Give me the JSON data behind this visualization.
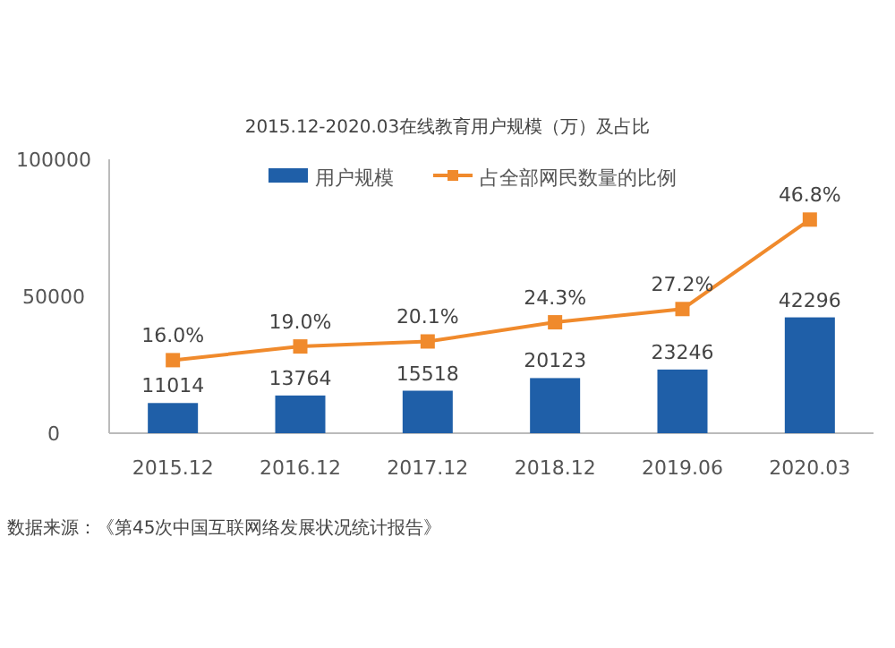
{
  "chart_data": {
    "type": "bar",
    "title": "2015.12-2020.03在线教育用户规模（万）及占比",
    "categories": [
      "2015.12",
      "2016.12",
      "2017.12",
      "2018.12",
      "2019.06",
      "2020.03"
    ],
    "series": [
      {
        "name": "用户规模",
        "color": "#1f5fa8",
        "values": [
          11014,
          13764,
          15518,
          20123,
          23246,
          42296
        ],
        "value_labels": [
          "11014",
          "13764",
          "15518",
          "20123",
          "23246",
          "42296"
        ]
      },
      {
        "name": "占全部网民数量的比例",
        "type": "line",
        "axis": "y2",
        "color": "#f08a2c",
        "marker": "square",
        "values": [
          16.0,
          19.0,
          20.1,
          24.3,
          27.2,
          46.8
        ],
        "value_labels": [
          "16.0%",
          "19.0%",
          "20.1%",
          "24.3%",
          "27.2%",
          "46.8%"
        ]
      }
    ],
    "ylim": [
      0,
      100000
    ],
    "yticks": [
      0,
      50000,
      100000
    ],
    "y2lim": [
      0,
      60
    ],
    "grid": false,
    "legend": "top",
    "annotations": [
      "数据来源：《第45次中国互联网络发展状况统计报告》"
    ]
  }
}
